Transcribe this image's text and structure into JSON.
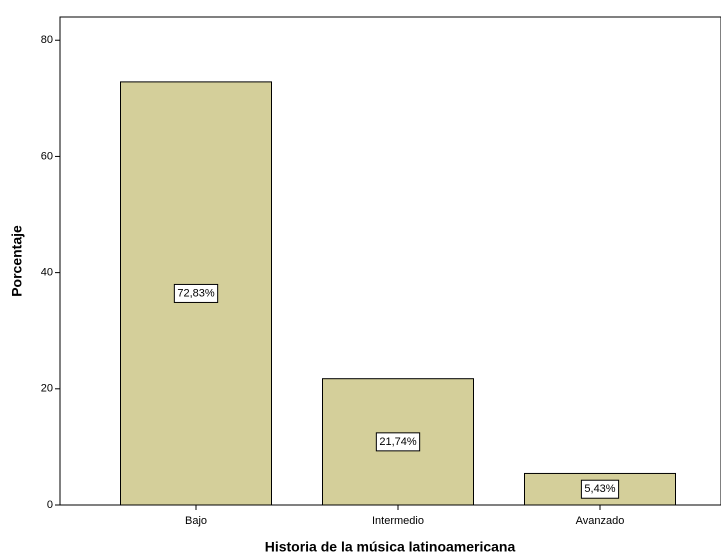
{
  "chart_data": {
    "type": "bar",
    "x_label": "Historia de la música latinoamericana",
    "y_label": "Porcentaje",
    "categories": [
      "Bajo",
      "Intermedio",
      "Avanzado"
    ],
    "values": [
      72.83,
      21.74,
      5.43
    ],
    "value_labels": [
      "72,83%",
      "21,74%",
      "5,43%"
    ],
    "color": "#d4cf9a",
    "ylim": [
      0,
      84
    ],
    "yticks": [
      0,
      20,
      40,
      60,
      80
    ],
    "grid": false
  }
}
